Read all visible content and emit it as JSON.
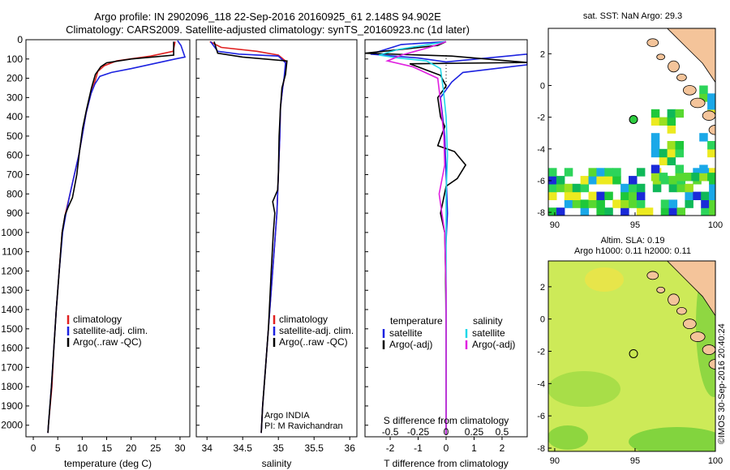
{
  "title_line1": "Argo profile: IN 2902096_118 22-Sep-2016 20160925_61 2.148S 94.902E",
  "title_line2": "Climatology: CARS2009. Satellite-adjusted climatology: synTS_20160923.nc (1d later)",
  "stamp": "©IMOS 30-Sep-2016 20:40:24",
  "colors": {
    "climatology": "#e02020",
    "satellite": "#1c22e0",
    "argo": "#000000",
    "sat_salinity": "#20d8e8",
    "argo_salinity": "#e020e0",
    "land": "#f4c49a"
  },
  "chart_data": [
    {
      "type": "line",
      "panel": "temperature",
      "xlabel": "temperature (deg C)",
      "x_ticks": [
        0,
        5,
        10,
        15,
        20,
        25,
        30
      ],
      "y_ticks": [
        0,
        100,
        200,
        300,
        400,
        500,
        600,
        700,
        800,
        900,
        1000,
        1100,
        1200,
        1300,
        1400,
        1500,
        1600,
        1700,
        1800,
        1900,
        2000
      ],
      "xlim": [
        -1.5,
        32
      ],
      "ylim": [
        2060,
        0
      ],
      "legend": [
        "climatology",
        "satellite-adj. clim.",
        "Argo(..raw -QC)"
      ],
      "series": [
        {
          "name": "climatology",
          "color": "#e02020",
          "points": [
            [
              29,
              10
            ],
            [
              28.6,
              60
            ],
            [
              24,
              85
            ],
            [
              17,
              110
            ],
            [
              14.5,
              135
            ],
            [
              13.2,
              165
            ],
            [
              12.8,
              200
            ],
            [
              11.8,
              280
            ],
            [
              10.8,
              380
            ],
            [
              10,
              500
            ],
            [
              9.3,
              600
            ],
            [
              8.4,
              700
            ],
            [
              7.5,
              800
            ],
            [
              6.6,
              900
            ],
            [
              5.9,
              1000
            ],
            [
              5.3,
              1200
            ],
            [
              4.7,
              1400
            ],
            [
              4.2,
              1600
            ],
            [
              3.8,
              1800
            ],
            [
              3.1,
              2000
            ],
            [
              3,
              2040
            ]
          ]
        },
        {
          "name": "satellite-adj. clim.",
          "color": "#1c22e0",
          "points": [
            [
              29.5,
              5
            ],
            [
              30.2,
              30
            ],
            [
              31,
              90
            ],
            [
              29,
              100
            ],
            [
              20,
              150
            ],
            [
              16,
              170
            ],
            [
              13.6,
              190
            ],
            [
              12.6,
              230
            ],
            [
              11.8,
              280
            ],
            [
              10.8,
              380
            ],
            [
              10,
              500
            ],
            [
              9.3,
              600
            ],
            [
              8.4,
              700
            ],
            [
              7.5,
              800
            ],
            [
              6.7,
              900
            ],
            [
              6,
              1000
            ],
            [
              5.3,
              1200
            ],
            [
              4.7,
              1400
            ],
            [
              4.2,
              1600
            ],
            [
              3.7,
              1800
            ],
            [
              3.1,
              2000
            ],
            [
              3,
              2040
            ]
          ]
        },
        {
          "name": "Argo(..raw -QC)",
          "color": "#000000",
          "points": [
            [
              28.7,
              10
            ],
            [
              28.7,
              80
            ],
            [
              20,
              100
            ],
            [
              15,
              120
            ],
            [
              13.8,
              140
            ],
            [
              12.7,
              180
            ],
            [
              11.9,
              250
            ],
            [
              10.9,
              360
            ],
            [
              10.1,
              460
            ],
            [
              9.5,
              570
            ],
            [
              8.9,
              700
            ],
            [
              8,
              820
            ],
            [
              7.1,
              870
            ],
            [
              6.5,
              910
            ],
            [
              5.9,
              1000
            ],
            [
              5.3,
              1200
            ],
            [
              4.7,
              1400
            ],
            [
              4.2,
              1600
            ],
            [
              3.7,
              1800
            ],
            [
              3.1,
              2000
            ],
            [
              3,
              2040
            ]
          ]
        }
      ]
    },
    {
      "type": "line",
      "panel": "salinity",
      "xlabel": "salinity",
      "x_ticks": [
        34,
        34.5,
        35,
        35.5,
        36
      ],
      "xlim": [
        33.85,
        36.1
      ],
      "ylim": [
        2060,
        0
      ],
      "legend": [
        "climatology",
        "satellite-adj. clim.",
        "Argo(..raw -QC)"
      ],
      "annotation": [
        "Argo INDIA",
        "PI: M Ravichandran"
      ],
      "series": [
        {
          "name": "climatology",
          "color": "#e02020",
          "points": [
            [
              34.04,
              10
            ],
            [
              34.2,
              40
            ],
            [
              34.7,
              60
            ],
            [
              35,
              80
            ],
            [
              35.1,
              110
            ],
            [
              35.1,
              160
            ],
            [
              35.06,
              250
            ],
            [
              35.03,
              350
            ],
            [
              35.02,
              500
            ],
            [
              35,
              700
            ],
            [
              34.98,
              900
            ],
            [
              34.94,
              1100
            ],
            [
              34.9,
              1300
            ],
            [
              34.86,
              1500
            ],
            [
              34.82,
              1700
            ],
            [
              34.78,
              1900
            ],
            [
              34.76,
              2040
            ]
          ]
        },
        {
          "name": "satellite-adj. clim.",
          "color": "#1c22e0",
          "points": [
            [
              34.05,
              10
            ],
            [
              34.15,
              60
            ],
            [
              34.45,
              75
            ],
            [
              35,
              85
            ],
            [
              35.1,
              120
            ],
            [
              35.08,
              200
            ],
            [
              35.06,
              250
            ],
            [
              35.03,
              350
            ],
            [
              35.02,
              500
            ],
            [
              35,
              700
            ],
            [
              34.98,
              900
            ],
            [
              34.94,
              1100
            ],
            [
              34.9,
              1300
            ],
            [
              34.86,
              1500
            ],
            [
              34.82,
              1700
            ],
            [
              34.78,
              1900
            ],
            [
              34.76,
              2040
            ]
          ]
        },
        {
          "name": "Argo(..raw -QC)",
          "color": "#000000",
          "points": [
            [
              34.1,
              10
            ],
            [
              34.15,
              70
            ],
            [
              34.5,
              90
            ],
            [
              35.12,
              110
            ],
            [
              35.1,
              180
            ],
            [
              35.05,
              250
            ],
            [
              35.03,
              350
            ],
            [
              35.01,
              500
            ],
            [
              35,
              700
            ],
            [
              34.99,
              780
            ],
            [
              34.92,
              840
            ],
            [
              34.95,
              900
            ],
            [
              34.93,
              1000
            ],
            [
              34.9,
              1200
            ],
            [
              34.86,
              1500
            ],
            [
              34.82,
              1700
            ],
            [
              34.78,
              1900
            ],
            [
              34.76,
              2040
            ]
          ]
        }
      ]
    },
    {
      "type": "line",
      "panel": "difference",
      "xlabel_bottom": "T difference from climatology",
      "xlabel_top": "S difference from climatology",
      "x_ticks_bottom": [
        -2,
        -1,
        0,
        1,
        2
      ],
      "x_ticks_top_labels": [
        "-0.5",
        "-0.25",
        "0",
        "0.25",
        "0.5"
      ],
      "x_ticks_top_positions": [
        -2,
        -1,
        0,
        1,
        2
      ],
      "xlim": [
        -2.9,
        2.9
      ],
      "ylim": [
        2060,
        0
      ],
      "legend_temperature": {
        "heading": "temperature",
        "items": [
          "satellite",
          "Argo(-adj)"
        ]
      },
      "legend_salinity": {
        "heading": "salinity",
        "items": [
          "satellite",
          "Argo(-adj)"
        ]
      },
      "series": [
        {
          "name": "satellite",
          "color": "#1c22e0",
          "points": [
            [
              0,
              10
            ],
            [
              -1.6,
              25
            ],
            [
              -2.7,
              75
            ],
            [
              -1,
              95
            ],
            [
              0,
              115
            ],
            [
              2.9,
              75
            ],
            [
              2.9,
              130
            ],
            [
              0.6,
              170
            ],
            [
              0.2,
              220
            ],
            [
              0,
              260
            ],
            [
              -0.2,
              300
            ],
            [
              -0.05,
              500
            ],
            [
              0,
              700
            ],
            [
              0.05,
              900
            ],
            [
              -0.02,
              1100
            ],
            [
              0,
              1400
            ],
            [
              0,
              1800
            ],
            [
              0,
              2050
            ]
          ]
        },
        {
          "name": "Argo(-adj)",
          "color": "#000000",
          "points": [
            [
              0,
              10
            ],
            [
              -0.3,
              30
            ],
            [
              -2.9,
              70
            ],
            [
              0.2,
              85
            ],
            [
              2.9,
              118
            ],
            [
              -1.3,
              125
            ],
            [
              -0.2,
              185
            ],
            [
              0,
              240
            ],
            [
              -0.3,
              300
            ],
            [
              -0.2,
              400
            ],
            [
              -0.05,
              450
            ],
            [
              -0.3,
              550
            ],
            [
              0.3,
              580
            ],
            [
              0.7,
              650
            ],
            [
              0.4,
              720
            ],
            [
              0,
              760
            ],
            [
              -0.2,
              900
            ],
            [
              -0.05,
              1000
            ],
            [
              -0.02,
              1200
            ],
            [
              0,
              1500
            ],
            [
              0,
              2050
            ]
          ]
        },
        {
          "name": "satellite (salinity)",
          "color": "#20d8e8",
          "points": [
            [
              0,
              10
            ],
            [
              -1.7,
              50
            ],
            [
              -2.4,
              80
            ],
            [
              -1.7,
              95
            ],
            [
              -0.7,
              110
            ],
            [
              -0.2,
              150
            ],
            [
              -0.1,
              260
            ],
            [
              0,
              400
            ],
            [
              0.05,
              600
            ],
            [
              0,
              800
            ],
            [
              0,
              1000
            ],
            [
              0,
              1400
            ],
            [
              0,
              1800
            ],
            [
              0,
              2050
            ]
          ]
        },
        {
          "name": "Argo(-adj) (salinity)",
          "color": "#e020e0",
          "points": [
            [
              0,
              10
            ],
            [
              -0.6,
              40
            ],
            [
              -1.6,
              80
            ],
            [
              -2.1,
              110
            ],
            [
              -1.2,
              140
            ],
            [
              -0.3,
              200
            ],
            [
              -0.2,
              320
            ],
            [
              -0.08,
              500
            ],
            [
              -0.05,
              650
            ],
            [
              -0.25,
              800
            ],
            [
              -0.15,
              900
            ],
            [
              -0.05,
              1000
            ],
            [
              0,
              1300
            ],
            [
              0,
              1600
            ],
            [
              0,
              2050
            ]
          ]
        }
      ]
    },
    {
      "type": "heatmap",
      "panel": "sst-map",
      "title": "sat. SST: NaN Argo: 29.3",
      "x_ticks": [
        90,
        95,
        100
      ],
      "y_ticks": [
        2,
        0,
        -2,
        -4,
        -6,
        -8
      ],
      "xlim": [
        89.6,
        100
      ],
      "ylim": [
        -8.2,
        3.6
      ],
      "argo_position": [
        94.902,
        -2.148
      ]
    },
    {
      "type": "heatmap",
      "panel": "sla-map",
      "title_line1": "Altim. SLA: 0.19",
      "title_line2": "Argo h1000: 0.11 h2000: 0.11",
      "x_ticks": [
        90,
        95,
        100
      ],
      "y_ticks": [
        2,
        0,
        -2,
        -4,
        -6,
        -8
      ],
      "xlim": [
        89.6,
        100
      ],
      "ylim": [
        -8.2,
        3.6
      ],
      "argo_position": [
        94.902,
        -2.148
      ]
    }
  ]
}
